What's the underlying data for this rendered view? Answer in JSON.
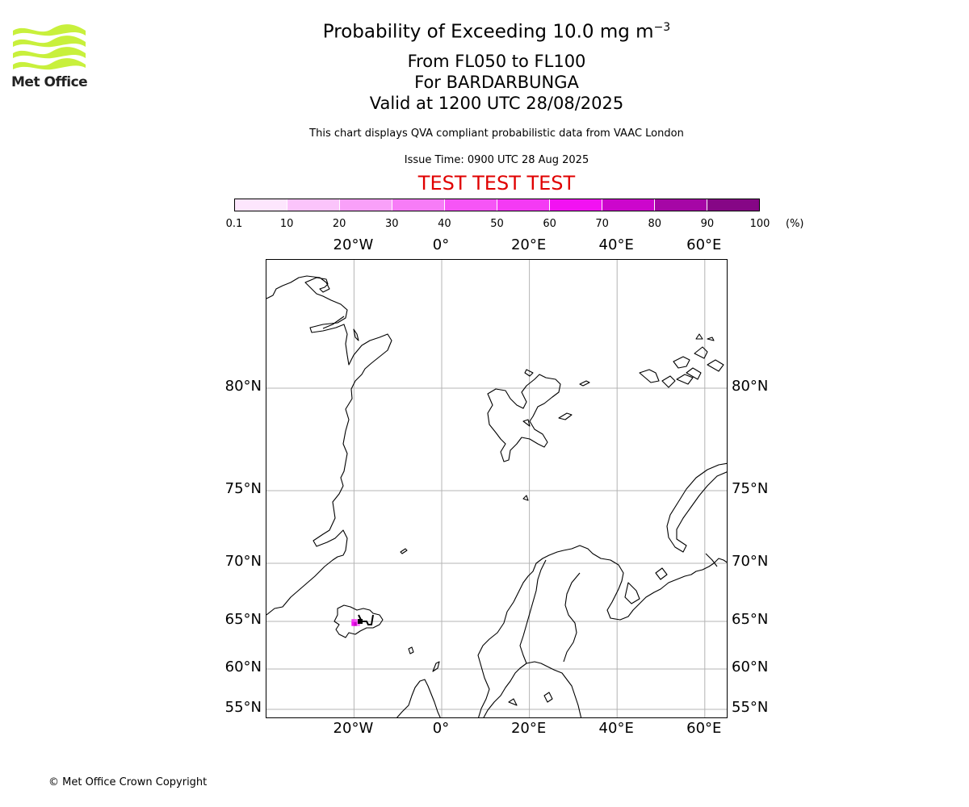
{
  "logo": {
    "text": "Met Office",
    "color": "#c8f03c"
  },
  "title": {
    "line1_main": "Probability of Exceeding 10.0 mg m",
    "line1_sup": "−3",
    "line2": "From FL050 to FL100",
    "line3": "For BARDARBUNGA",
    "line4": "Valid at 1200 UTC 28/08/2025"
  },
  "subtitle": {
    "compliance": "This chart displays QVA compliant probabilistic data from VAAC London",
    "issue_time": "Issue Time: 0900 UTC 28 Aug 2025"
  },
  "test_banner": {
    "text": "TEST TEST TEST",
    "color": "#e00000"
  },
  "colorbar": {
    "ticks": [
      "0.1",
      "10",
      "20",
      "30",
      "40",
      "50",
      "60",
      "70",
      "80",
      "90",
      "100"
    ],
    "unit": "(%)",
    "colors": [
      "#fde6fd",
      "#fbc4fb",
      "#f9a0f9",
      "#f77cf7",
      "#f655f6",
      "#f43af4",
      "#f212f2",
      "#cc06cc",
      "#a606a6",
      "#860686",
      "#600660"
    ]
  },
  "map": {
    "lon_labels": [
      "20°W",
      "0°",
      "20°E",
      "40°E",
      "60°E"
    ],
    "lat_labels": [
      "80°N",
      "75°N",
      "70°N",
      "65°N",
      "60°N",
      "55°N"
    ],
    "grid_color": "#b4b4b4",
    "volcano": "BARDARBUNGA",
    "ash_probability_cells": [
      {
        "lon": -20.2,
        "lat": 64.9,
        "probability_pct": 50
      },
      {
        "lon": -19.6,
        "lat": 64.9,
        "probability_pct": 40
      },
      {
        "lon": -20.2,
        "lat": 64.6,
        "probability_pct": 60
      },
      {
        "lon": -19.6,
        "lat": 64.6,
        "probability_pct": 70
      },
      {
        "lon": -19.0,
        "lat": 64.6,
        "probability_pct": 30
      }
    ]
  },
  "footer": {
    "copyright": "© Met Office Crown Copyright"
  }
}
